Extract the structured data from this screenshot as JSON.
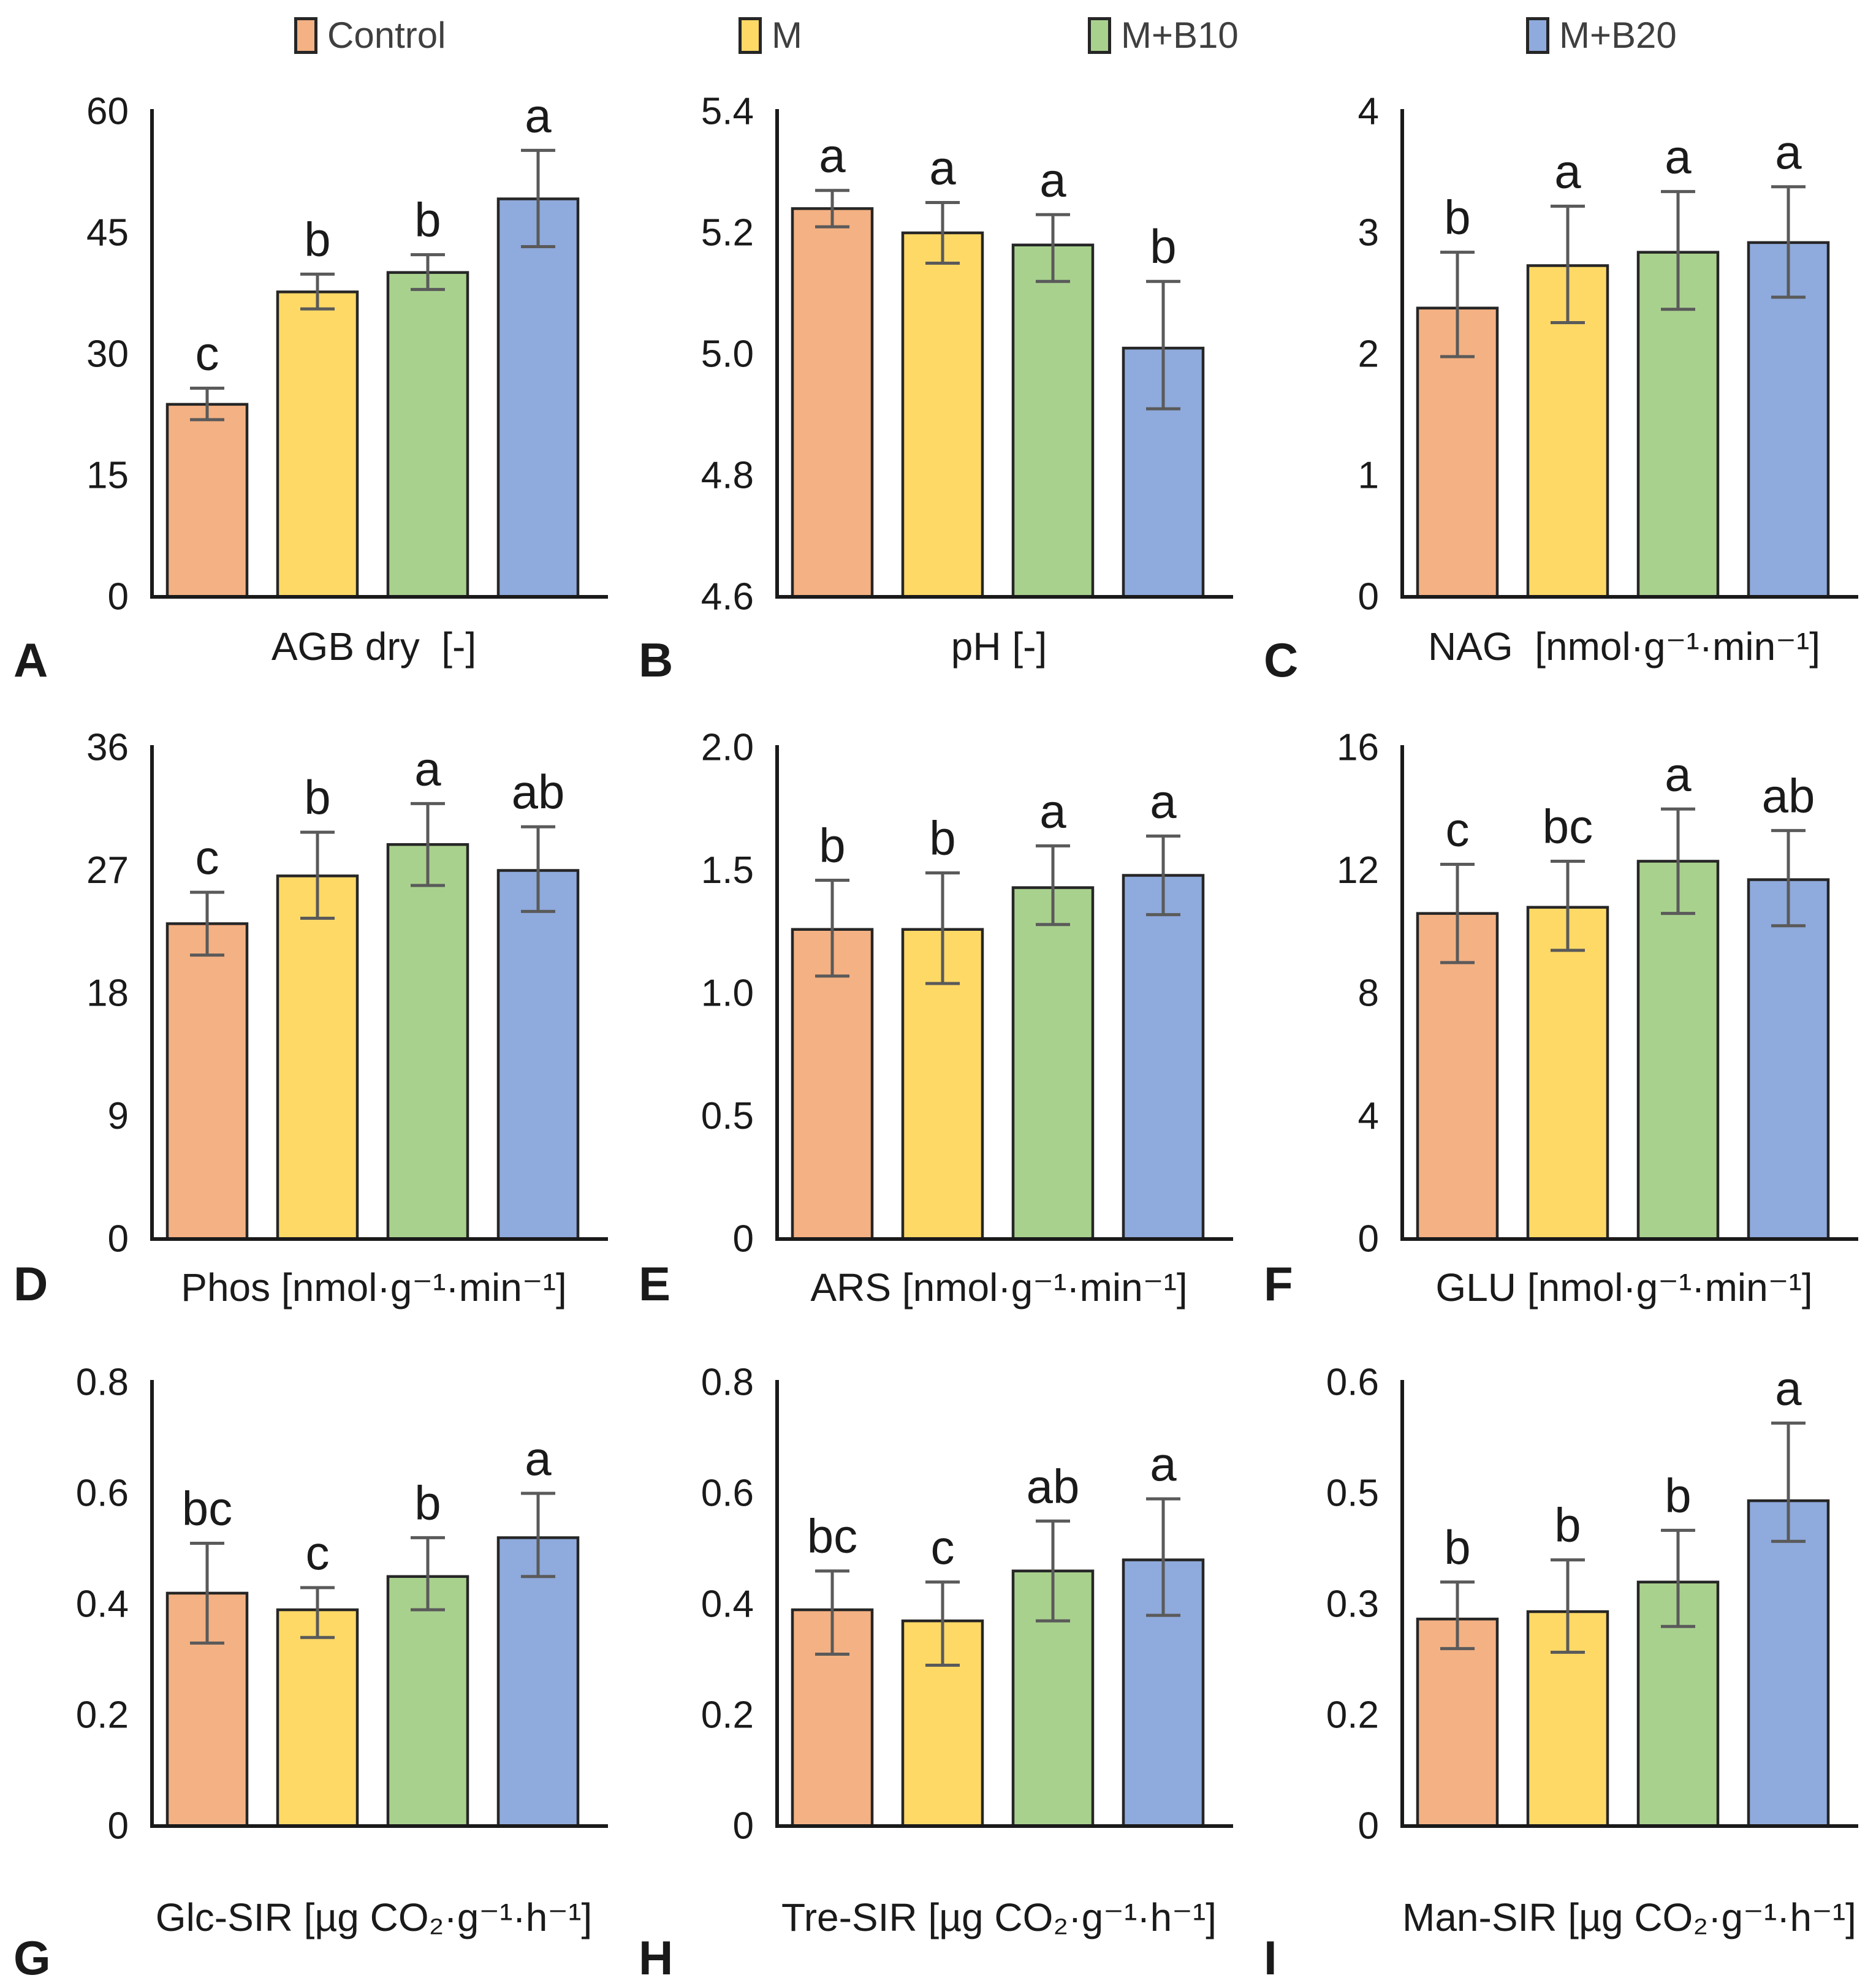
{
  "legend": {
    "items": [
      {
        "label": "Control",
        "color": "#F4B183"
      },
      {
        "label": "M",
        "color": "#FFD966"
      },
      {
        "label": "M+B10",
        "color": "#A9D18E"
      },
      {
        "label": "M+B20",
        "color": "#8FAADC"
      }
    ]
  },
  "style": {
    "bar_border": "#262626",
    "error_bar": "#5a5a5a",
    "axis": "#1a1a1a"
  },
  "chart_data": [
    {
      "panel": "A",
      "type": "bar",
      "xlabel": "AGB dry  [-]",
      "ylim": [
        0,
        60
      ],
      "grid": false,
      "legend_position": "top",
      "yticks": [
        {
          "v": 0,
          "label": "0"
        },
        {
          "v": 15,
          "label": "15"
        },
        {
          "v": 30,
          "label": "30"
        },
        {
          "v": 45,
          "label": "45"
        },
        {
          "v": 60,
          "label": "60"
        }
      ],
      "categories": [
        "Control",
        "M",
        "M+B10",
        "M+B20"
      ],
      "bars": [
        {
          "group": "Control",
          "value": 23.8,
          "lo": 21.9,
          "hi": 25.8,
          "letter": "c"
        },
        {
          "group": "M",
          "value": 37.7,
          "lo": 35.6,
          "hi": 39.9,
          "letter": "b"
        },
        {
          "group": "M+B10",
          "value": 40.1,
          "lo": 38.0,
          "hi": 42.3,
          "letter": "b"
        },
        {
          "group": "M+B20",
          "value": 49.2,
          "lo": 43.3,
          "hi": 55.2,
          "letter": "a"
        }
      ]
    },
    {
      "panel": "B",
      "type": "bar",
      "xlabel": "pH [-]",
      "ylim": [
        4.6,
        5.4
      ],
      "grid": false,
      "legend_position": "top",
      "yticks": [
        {
          "v": 4.6,
          "label": "4.6"
        },
        {
          "v": 4.8,
          "label": "4.8"
        },
        {
          "v": 5.0,
          "label": "5.0"
        },
        {
          "v": 5.2,
          "label": "5.2"
        },
        {
          "v": 5.4,
          "label": "5.4"
        }
      ],
      "categories": [
        "Control",
        "M",
        "M+B10",
        "M+B20"
      ],
      "bars": [
        {
          "group": "Control",
          "value": 5.24,
          "lo": 5.21,
          "hi": 5.27,
          "letter": "a"
        },
        {
          "group": "M",
          "value": 5.2,
          "lo": 5.15,
          "hi": 5.25,
          "letter": "a"
        },
        {
          "group": "M+B10",
          "value": 5.18,
          "lo": 5.12,
          "hi": 5.23,
          "letter": "a"
        },
        {
          "group": "M+B20",
          "value": 5.01,
          "lo": 4.91,
          "hi": 5.12,
          "letter": "b"
        }
      ]
    },
    {
      "panel": "C",
      "type": "bar",
      "xlabel": "NAG  [nmol·g⁻¹·min⁻¹]",
      "ylim": [
        0,
        4
      ],
      "grid": false,
      "legend_position": "top",
      "yticks": [
        {
          "v": 0,
          "label": "0"
        },
        {
          "v": 1,
          "label": "1"
        },
        {
          "v": 2,
          "label": "2"
        },
        {
          "v": 3,
          "label": "3"
        },
        {
          "v": 4,
          "label": "4"
        }
      ],
      "categories": [
        "Control",
        "M",
        "M+B10",
        "M+B20"
      ],
      "bars": [
        {
          "group": "Control",
          "value": 2.38,
          "lo": 1.98,
          "hi": 2.84,
          "letter": "b"
        },
        {
          "group": "M",
          "value": 2.73,
          "lo": 2.26,
          "hi": 3.22,
          "letter": "a"
        },
        {
          "group": "M+B10",
          "value": 2.84,
          "lo": 2.37,
          "hi": 3.34,
          "letter": "a"
        },
        {
          "group": "M+B20",
          "value": 2.92,
          "lo": 2.47,
          "hi": 3.38,
          "letter": "a"
        }
      ]
    },
    {
      "panel": "D",
      "type": "bar",
      "xlabel": "Phos [nmol·g⁻¹·min⁻¹]",
      "ylim": [
        0,
        36
      ],
      "grid": false,
      "legend_position": "top",
      "yticks": [
        {
          "v": 0,
          "label": "0"
        },
        {
          "v": 9,
          "label": "9"
        },
        {
          "v": 18,
          "label": "18"
        },
        {
          "v": 27,
          "label": "27"
        },
        {
          "v": 36,
          "label": "36"
        }
      ],
      "categories": [
        "Control",
        "M",
        "M+B10",
        "M+B20"
      ],
      "bars": [
        {
          "group": "Control",
          "value": 23.1,
          "lo": 20.8,
          "hi": 25.4,
          "letter": "c"
        },
        {
          "group": "M",
          "value": 26.6,
          "lo": 23.5,
          "hi": 29.8,
          "letter": "b"
        },
        {
          "group": "M+B10",
          "value": 28.9,
          "lo": 25.9,
          "hi": 31.9,
          "letter": "a"
        },
        {
          "group": "M+B20",
          "value": 27.0,
          "lo": 24.0,
          "hi": 30.2,
          "letter": "ab"
        }
      ]
    },
    {
      "panel": "E",
      "type": "bar",
      "xlabel": "ARS [nmol·g⁻¹·min⁻¹]",
      "ylim": [
        0,
        2.0
      ],
      "grid": false,
      "legend_position": "top",
      "yticks": [
        {
          "v": 0,
          "label": "0"
        },
        {
          "v": 0.5,
          "label": "0.5"
        },
        {
          "v": 1.0,
          "label": "1.0"
        },
        {
          "v": 1.5,
          "label": "1.5"
        },
        {
          "v": 2.0,
          "label": "2.0"
        }
      ],
      "categories": [
        "Control",
        "M",
        "M+B10",
        "M+B20"
      ],
      "bars": [
        {
          "group": "Control",
          "value": 1.26,
          "lo": 1.07,
          "hi": 1.46,
          "letter": "b"
        },
        {
          "group": "M",
          "value": 1.26,
          "lo": 1.04,
          "hi": 1.49,
          "letter": "b"
        },
        {
          "group": "M+B10",
          "value": 1.43,
          "lo": 1.28,
          "hi": 1.6,
          "letter": "a"
        },
        {
          "group": "M+B20",
          "value": 1.48,
          "lo": 1.32,
          "hi": 1.64,
          "letter": "a"
        }
      ]
    },
    {
      "panel": "F",
      "type": "bar",
      "xlabel": "GLU [nmol·g⁻¹·min⁻¹]",
      "ylim": [
        0,
        16
      ],
      "grid": false,
      "legend_position": "top",
      "yticks": [
        {
          "v": 0,
          "label": "0"
        },
        {
          "v": 4,
          "label": "4"
        },
        {
          "v": 8,
          "label": "8"
        },
        {
          "v": 12,
          "label": "12"
        },
        {
          "v": 16,
          "label": "16"
        }
      ],
      "categories": [
        "Control",
        "M",
        "M+B10",
        "M+B20"
      ],
      "bars": [
        {
          "group": "Control",
          "value": 10.6,
          "lo": 9.0,
          "hi": 12.2,
          "letter": "c"
        },
        {
          "group": "M",
          "value": 10.8,
          "lo": 9.4,
          "hi": 12.3,
          "letter": "bc"
        },
        {
          "group": "M+B10",
          "value": 12.3,
          "lo": 10.6,
          "hi": 14.0,
          "letter": "a"
        },
        {
          "group": "M+B20",
          "value": 11.7,
          "lo": 10.2,
          "hi": 13.3,
          "letter": "ab"
        }
      ]
    },
    {
      "panel": "G",
      "type": "bar",
      "xlabel": "Glc-SIR [µg CO₂·g⁻¹·h⁻¹]",
      "ylim": [
        0,
        0.8
      ],
      "grid": false,
      "legend_position": "top",
      "yticks": [
        {
          "v": 0,
          "label": "0"
        },
        {
          "v": 0.2,
          "label": "0.2"
        },
        {
          "v": 0.4,
          "label": "0.4"
        },
        {
          "v": 0.6,
          "label": "0.6"
        },
        {
          "v": 0.8,
          "label": "0.8"
        }
      ],
      "categories": [
        "Control",
        "M",
        "M+B10",
        "M+B20"
      ],
      "bars": [
        {
          "group": "Control",
          "value": 0.42,
          "lo": 0.33,
          "hi": 0.51,
          "letter": "bc"
        },
        {
          "group": "M",
          "value": 0.39,
          "lo": 0.34,
          "hi": 0.43,
          "letter": "c"
        },
        {
          "group": "M+B10",
          "value": 0.45,
          "lo": 0.39,
          "hi": 0.52,
          "letter": "b"
        },
        {
          "group": "M+B20",
          "value": 0.52,
          "lo": 0.45,
          "hi": 0.6,
          "letter": "a"
        }
      ]
    },
    {
      "panel": "H",
      "type": "bar",
      "xlabel": "Tre-SIR [µg CO₂·g⁻¹·h⁻¹]",
      "ylim": [
        0,
        0.8
      ],
      "grid": false,
      "legend_position": "top",
      "yticks": [
        {
          "v": 0,
          "label": "0"
        },
        {
          "v": 0.2,
          "label": "0.2"
        },
        {
          "v": 0.4,
          "label": "0.4"
        },
        {
          "v": 0.6,
          "label": "0.6"
        },
        {
          "v": 0.8,
          "label": "0.8"
        }
      ],
      "categories": [
        "Control",
        "M",
        "M+B10",
        "M+B20"
      ],
      "bars": [
        {
          "group": "Control",
          "value": 0.39,
          "lo": 0.31,
          "hi": 0.46,
          "letter": "bc"
        },
        {
          "group": "M",
          "value": 0.37,
          "lo": 0.29,
          "hi": 0.44,
          "letter": "c"
        },
        {
          "group": "M+B10",
          "value": 0.46,
          "lo": 0.37,
          "hi": 0.55,
          "letter": "ab"
        },
        {
          "group": "M+B20",
          "value": 0.48,
          "lo": 0.38,
          "hi": 0.59,
          "letter": "a"
        }
      ]
    },
    {
      "panel": "I",
      "type": "bar",
      "xlabel": "Man-SIR [µg CO₂·g⁻¹·h⁻¹]",
      "ylim": [
        0,
        0.6
      ],
      "grid": false,
      "legend_position": "top",
      "yticks": [
        {
          "v": 0,
          "label": "0"
        },
        {
          "v": 0.15,
          "label": "0.2"
        },
        {
          "v": 0.3,
          "label": "0.3"
        },
        {
          "v": 0.45,
          "label": "0.5"
        },
        {
          "v": 0.6,
          "label": "0.6"
        }
      ],
      "categories": [
        "Control",
        "M",
        "M+B10",
        "M+B20"
      ],
      "bars": [
        {
          "group": "Control",
          "value": 0.28,
          "lo": 0.24,
          "hi": 0.33,
          "letter": "b"
        },
        {
          "group": "M",
          "value": 0.29,
          "lo": 0.235,
          "hi": 0.36,
          "letter": "b"
        },
        {
          "group": "M+B10",
          "value": 0.33,
          "lo": 0.27,
          "hi": 0.4,
          "letter": "b"
        },
        {
          "group": "M+B20",
          "value": 0.44,
          "lo": 0.385,
          "hi": 0.545,
          "letter": "a"
        }
      ]
    }
  ]
}
